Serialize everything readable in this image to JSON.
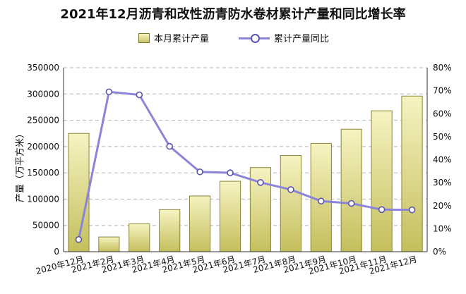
{
  "title": "2021年12月沥青和改性沥青防水卷材累计产量和同比增长率",
  "legend": {
    "bar_label": "本月累计产量",
    "line_label": "累计产量同比"
  },
  "colors": {
    "bar_top": "#f6f3c2",
    "bar_bottom": "#c4bf5c",
    "bar_border": "#8a8638",
    "line": "#8b84d8",
    "marker_border": "#5b54b0",
    "grid": "#b5b5b5"
  },
  "chart_data": {
    "type": "bar",
    "categories": [
      "2020年12月",
      "2021年2月",
      "2021年3月",
      "2021年4月",
      "2021年5月",
      "2021年6月",
      "2021年7月",
      "2021年8月",
      "2021年9月",
      "2021年10月",
      "2021年11月",
      "2021年12月"
    ],
    "series": [
      {
        "name": "本月累计产量",
        "type": "bar",
        "axis": "left",
        "values": [
          225000,
          28000,
          53000,
          80000,
          106000,
          134000,
          160000,
          183000,
          206000,
          233000,
          268000,
          296000
        ]
      },
      {
        "name": "累计产量同比",
        "type": "line",
        "axis": "right",
        "values": [
          5.3,
          69.5,
          68.2,
          45.8,
          34.7,
          34.3,
          30.1,
          27.0,
          22.0,
          21.0,
          18.3,
          18.2
        ]
      }
    ],
    "ylabel": "产量（万平方米）",
    "ylim": [
      0,
      350000
    ],
    "yticks": [
      "0",
      "50000",
      "100000",
      "150000",
      "200000",
      "250000",
      "300000",
      "350000"
    ],
    "y2lim": [
      0,
      80
    ],
    "y2ticks": [
      "0%",
      "10%",
      "20%",
      "30%",
      "40%",
      "50%",
      "60%",
      "70%",
      "80%"
    ],
    "grid": true,
    "legend_position": "top"
  }
}
